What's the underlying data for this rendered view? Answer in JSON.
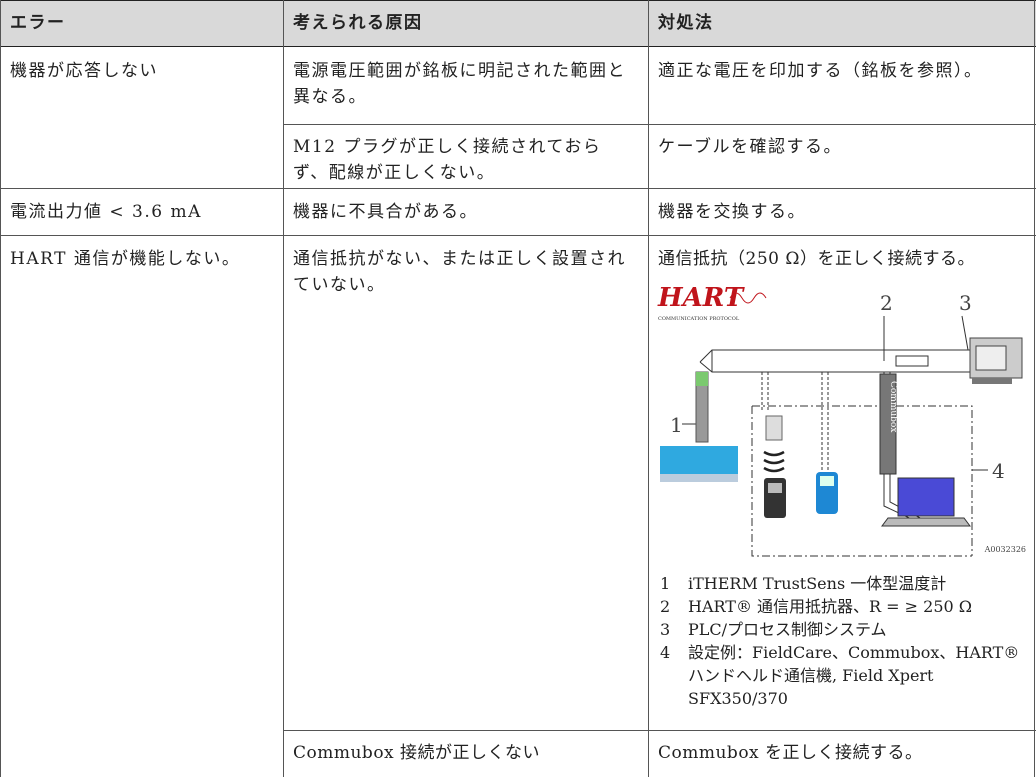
{
  "table": {
    "headers": [
      "エラー",
      "考えられる原因",
      "対処法"
    ],
    "rows": [
      {
        "error": "機器が応答しない",
        "items": [
          {
            "cause": "電源電圧範囲が銘板に明記された範囲と異なる。",
            "remedy": "適正な電圧を印加する（銘板を参照）。"
          },
          {
            "cause": "M12 プラグが正しく接続されておらず、配線が正しくない。",
            "remedy": "ケーブルを確認する。"
          }
        ]
      },
      {
        "error": "電流出力値 < 3.6 mA",
        "items": [
          {
            "cause": "機器に不具合がある。",
            "remedy": "機器を交換する。"
          }
        ]
      },
      {
        "error": "HART 通信が機能しない。",
        "items": [
          {
            "cause": "通信抵抗がない、または正しく設置されていない。",
            "remedy": "通信抵抗（250 Ω）を正しく接続する。"
          },
          {
            "cause": "Commubox 接続が正しくない",
            "remedy": "Commubox を正しく接続する。"
          }
        ]
      }
    ]
  },
  "figure": {
    "logo": "HART",
    "logo_subtitle": "COMMUNICATION PROTOCOL",
    "callouts": [
      "1",
      "2",
      "3",
      "4"
    ],
    "device_label": "Commubox",
    "id": "A0032326",
    "legend": [
      {
        "number": "1",
        "text": "iTHERM TrustSens 一体型温度計"
      },
      {
        "number": "2",
        "text": "HART® 通信用抵抗器、R = ≥ 250 Ω"
      },
      {
        "number": "3",
        "text": "PLC/プロセス制御システム"
      },
      {
        "number": "4",
        "text": "設定例：FieldCare、Commubox、HART® ハンドヘルド通信機, Field Xpert SFX350/370"
      }
    ]
  }
}
